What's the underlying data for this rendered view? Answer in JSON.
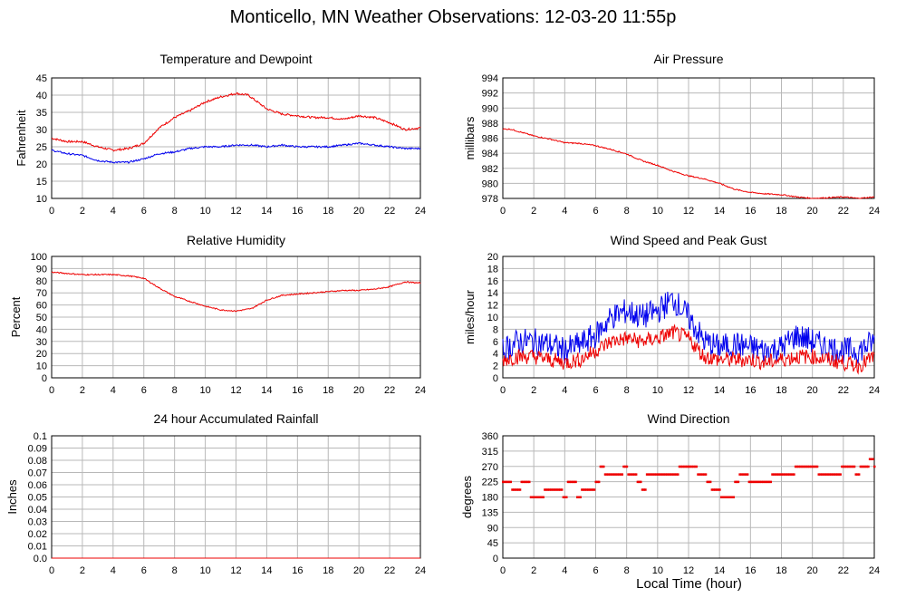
{
  "page": {
    "title": "Monticello, MN Weather Observations: 12-03-20 11:55p",
    "x_axis_caption": "Local Time (hour)"
  },
  "colors": {
    "red": "#ee0000",
    "blue": "#0000ee",
    "grid": "#b8b8b8",
    "frame": "#000000"
  },
  "chart_data": [
    {
      "id": "temperature",
      "type": "line",
      "title": "Temperature and Dewpoint",
      "xlabel": "",
      "ylabel": "Fahrenheit",
      "xlim": [
        0,
        24
      ],
      "ylim": [
        10,
        45
      ],
      "xticks": [
        0,
        2,
        4,
        6,
        8,
        10,
        12,
        14,
        16,
        18,
        20,
        22,
        24
      ],
      "yticks": [
        10,
        15,
        20,
        25,
        30,
        35,
        40,
        45
      ],
      "grid": true,
      "series": [
        {
          "color": "#ee0000",
          "noise": 0.3,
          "x": [
            0,
            1,
            2,
            3,
            4,
            5,
            6,
            7,
            8,
            9,
            10,
            11,
            12,
            12.8,
            14,
            15,
            16,
            17,
            18,
            19,
            20,
            21,
            22,
            23,
            24
          ],
          "values": [
            27.5,
            26.5,
            26.5,
            25,
            24,
            24.5,
            26,
            30.5,
            33.5,
            35.5,
            38,
            39.5,
            40.5,
            40,
            36,
            34.5,
            34,
            33.5,
            33.5,
            33,
            34,
            33.5,
            32,
            30,
            30.5
          ]
        },
        {
          "color": "#0000ee",
          "noise": 0.25,
          "x": [
            0,
            1,
            2,
            3,
            4,
            5,
            6,
            7,
            8,
            9,
            10,
            11,
            12,
            13,
            14,
            15,
            16,
            17,
            18,
            19,
            20,
            21,
            22,
            23,
            24
          ],
          "values": [
            24,
            23,
            22.5,
            21,
            20.5,
            20.5,
            21.5,
            23,
            23.5,
            24.5,
            25,
            25,
            25.5,
            25.5,
            25,
            25.5,
            25,
            25,
            25,
            25.5,
            26,
            25.5,
            25,
            24.5,
            24.5
          ]
        }
      ]
    },
    {
      "id": "pressure",
      "type": "line",
      "title": "Air Pressure",
      "xlabel": "",
      "ylabel": "millibars",
      "xlim": [
        0,
        24
      ],
      "ylim": [
        978,
        994
      ],
      "xticks": [
        0,
        2,
        4,
        6,
        8,
        10,
        12,
        14,
        16,
        18,
        20,
        22,
        24
      ],
      "yticks": [
        978,
        980,
        982,
        984,
        986,
        988,
        990,
        992,
        994
      ],
      "grid": true,
      "series": [
        {
          "color": "#ee0000",
          "noise": 0.08,
          "x": [
            0,
            0.5,
            2,
            3,
            4,
            5,
            6,
            7,
            8,
            9,
            10,
            11,
            12,
            13,
            14,
            15,
            16,
            17,
            18,
            19,
            20,
            21,
            22,
            23,
            24
          ],
          "values": [
            987.2,
            987.2,
            986.3,
            985.9,
            985.4,
            985.3,
            985.0,
            984.5,
            983.9,
            983.0,
            982.4,
            981.6,
            981.0,
            980.6,
            980.0,
            979.2,
            978.8,
            978.6,
            978.5,
            978.2,
            978.0,
            978.1,
            978.2,
            978.0,
            978.2
          ]
        }
      ]
    },
    {
      "id": "humidity",
      "type": "line",
      "title": "Relative Humidity",
      "xlabel": "",
      "ylabel": "Percent",
      "xlim": [
        0,
        24
      ],
      "ylim": [
        0,
        100
      ],
      "xticks": [
        0,
        2,
        4,
        6,
        8,
        10,
        12,
        14,
        16,
        18,
        20,
        22,
        24
      ],
      "yticks": [
        0,
        10,
        20,
        30,
        40,
        50,
        60,
        70,
        80,
        90,
        100
      ],
      "grid": true,
      "series": [
        {
          "color": "#ee0000",
          "noise": 0.5,
          "x": [
            0,
            1,
            2,
            3,
            4,
            5,
            6,
            7,
            8,
            9,
            10,
            11,
            12,
            13,
            14,
            15,
            16,
            17,
            18,
            19,
            20,
            21,
            22,
            23,
            24
          ],
          "values": [
            87,
            86,
            85,
            85,
            85,
            84,
            82,
            74,
            67,
            63,
            59,
            56,
            55,
            57,
            64,
            68,
            69,
            70,
            71,
            72,
            72,
            73,
            75,
            79,
            78
          ]
        }
      ]
    },
    {
      "id": "wind",
      "type": "line",
      "title": "Wind Speed and Peak Gust",
      "xlabel": "",
      "ylabel": "miles/hour",
      "xlim": [
        0,
        24
      ],
      "ylim": [
        0,
        20
      ],
      "xticks": [
        0,
        2,
        4,
        6,
        8,
        10,
        12,
        14,
        16,
        18,
        20,
        22,
        24
      ],
      "yticks": [
        0,
        2,
        4,
        6,
        8,
        10,
        12,
        14,
        16,
        18,
        20
      ],
      "grid": true,
      "series": [
        {
          "color": "#0000ee",
          "noise": 2.2,
          "x": [
            0,
            1,
            2,
            3,
            4,
            5,
            6,
            7,
            8,
            9,
            10,
            11,
            12,
            13,
            14,
            15,
            16,
            17,
            18,
            19,
            20,
            21,
            22,
            23,
            24
          ],
          "values": [
            4.5,
            6,
            6,
            5.5,
            4.5,
            5.5,
            7,
            10,
            11,
            10,
            11,
            13,
            10,
            6,
            5,
            5.5,
            5,
            4.5,
            5,
            7,
            6,
            5,
            4.5,
            4.5,
            6
          ]
        },
        {
          "color": "#ee0000",
          "noise": 1.3,
          "x": [
            0,
            1,
            2,
            3,
            4,
            5,
            6,
            7,
            8,
            9,
            10,
            11,
            12,
            13,
            14,
            15,
            16,
            17,
            18,
            19,
            20,
            21,
            22,
            23,
            24
          ],
          "values": [
            3,
            3.5,
            3.5,
            3,
            2.5,
            3,
            4.5,
            6,
            6.5,
            6,
            6.5,
            7.5,
            6.5,
            3.5,
            3,
            3,
            3,
            2.5,
            3,
            3.5,
            3.5,
            3,
            2.5,
            2,
            3.5
          ]
        }
      ]
    },
    {
      "id": "rainfall",
      "type": "line",
      "title": "24 hour Accumulated Rainfall",
      "xlabel": "",
      "ylabel": "Inches",
      "xlim": [
        0,
        24
      ],
      "ylim": [
        0,
        0.1
      ],
      "xticks": [
        0,
        2,
        4,
        6,
        8,
        10,
        12,
        14,
        16,
        18,
        20,
        22,
        24
      ],
      "yticks": [
        "0.0",
        "0.01",
        "0.02",
        "0.03",
        "0.04",
        "0.05",
        "0.06",
        "0.07",
        "0.08",
        "0.09",
        "0.1"
      ],
      "grid": true,
      "series": [
        {
          "color": "#ee0000",
          "noise": 0,
          "x": [
            0,
            24
          ],
          "values": [
            0,
            0
          ]
        }
      ]
    },
    {
      "id": "direction",
      "type": "scatter",
      "title": "Wind Direction",
      "xlabel": "Local Time (hour)",
      "ylabel": "degrees",
      "xlim": [
        0,
        24
      ],
      "ylim": [
        0,
        360
      ],
      "xticks": [
        0,
        2,
        4,
        6,
        8,
        10,
        12,
        14,
        16,
        18,
        20,
        22,
        24
      ],
      "yticks": [
        0,
        45,
        90,
        135,
        180,
        225,
        270,
        315,
        360
      ],
      "grid": true,
      "series": [
        {
          "color": "#ee0000",
          "x": [
            0,
            0.3,
            0.6,
            0.9,
            1.2,
            1.5,
            1.8,
            2.1,
            2.4,
            2.7,
            3.0,
            3.3,
            3.6,
            3.9,
            4.2,
            4.5,
            4.8,
            5.1,
            5.4,
            5.7,
            6.0,
            6.3,
            6.6,
            6.9,
            7.2,
            7.5,
            7.8,
            8.1,
            8.4,
            8.7,
            9.0,
            9.3,
            9.6,
            9.9,
            10.2,
            10.5,
            10.8,
            11.1,
            11.4,
            11.7,
            12.0,
            12.3,
            12.6,
            12.9,
            13.2,
            13.5,
            13.8,
            14.1,
            14.4,
            14.7,
            15.0,
            15.3,
            15.6,
            15.9,
            16.2,
            16.5,
            16.8,
            17.1,
            17.4,
            17.7,
            18.0,
            18.3,
            18.6,
            18.9,
            19.2,
            19.5,
            19.8,
            20.1,
            20.4,
            20.7,
            21.0,
            21.3,
            21.6,
            21.9,
            22.2,
            22.5,
            22.8,
            23.1,
            23.4,
            23.7,
            24.0
          ],
          "values": [
            225,
            225,
            202,
            202,
            225,
            225,
            180,
            180,
            180,
            202,
            202,
            202,
            202,
            180,
            225,
            225,
            180,
            202,
            202,
            202,
            225,
            270,
            247,
            247,
            247,
            247,
            270,
            247,
            247,
            225,
            202,
            247,
            247,
            247,
            247,
            247,
            247,
            247,
            270,
            270,
            270,
            270,
            247,
            247,
            225,
            202,
            202,
            180,
            180,
            180,
            225,
            247,
            247,
            225,
            225,
            225,
            225,
            225,
            247,
            247,
            247,
            247,
            247,
            270,
            270,
            270,
            270,
            270,
            247,
            247,
            247,
            247,
            247,
            270,
            270,
            270,
            247,
            270,
            270,
            292,
            270
          ]
        }
      ]
    }
  ]
}
